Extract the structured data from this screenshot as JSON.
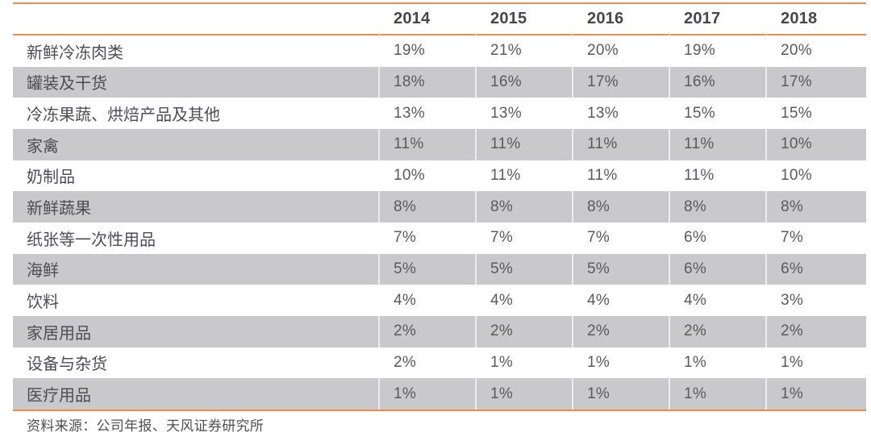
{
  "table": {
    "columns": [
      "2014",
      "2015",
      "2016",
      "2017",
      "2018"
    ],
    "rows": [
      {
        "label": "新鲜冷冻肉类",
        "values": [
          "19%",
          "21%",
          "20%",
          "19%",
          "20%"
        ]
      },
      {
        "label": "罐装及干货",
        "values": [
          "18%",
          "16%",
          "17%",
          "16%",
          "17%"
        ]
      },
      {
        "label": "冷冻果蔬、烘焙产品及其他",
        "values": [
          "13%",
          "13%",
          "13%",
          "15%",
          "15%"
        ]
      },
      {
        "label": "家禽",
        "values": [
          "11%",
          "11%",
          "11%",
          "11%",
          "10%"
        ]
      },
      {
        "label": "奶制品",
        "values": [
          "10%",
          "11%",
          "11%",
          "11%",
          "10%"
        ]
      },
      {
        "label": "新鲜蔬果",
        "values": [
          "8%",
          "8%",
          "8%",
          "8%",
          "8%"
        ]
      },
      {
        "label": "纸张等一次性用品",
        "values": [
          "7%",
          "7%",
          "7%",
          "6%",
          "7%"
        ]
      },
      {
        "label": "海鲜",
        "values": [
          "5%",
          "5%",
          "5%",
          "6%",
          "6%"
        ]
      },
      {
        "label": "饮料",
        "values": [
          "4%",
          "4%",
          "4%",
          "4%",
          "3%"
        ]
      },
      {
        "label": "家居用品",
        "values": [
          "2%",
          "2%",
          "2%",
          "2%",
          "2%"
        ]
      },
      {
        "label": "设备与杂货",
        "values": [
          "2%",
          "1%",
          "1%",
          "1%",
          "1%"
        ]
      },
      {
        "label": "医疗用品",
        "values": [
          "1%",
          "1%",
          "1%",
          "1%",
          "1%"
        ]
      }
    ]
  },
  "source": "资料来源：公司年报、天风证券研究所",
  "colors": {
    "accent_orange": "#ED8A47",
    "row_gray": "#c9c9cb",
    "header_text": "#47474b",
    "label_text": "#4d4d52",
    "value_text": "#5a5a5e"
  },
  "chart_data": {
    "type": "table",
    "title": "",
    "categories": [
      "2014",
      "2015",
      "2016",
      "2017",
      "2018"
    ],
    "unit": "%",
    "series": [
      {
        "name": "新鲜冷冻肉类",
        "values": [
          19,
          21,
          20,
          19,
          20
        ]
      },
      {
        "name": "罐装及干货",
        "values": [
          18,
          16,
          17,
          16,
          17
        ]
      },
      {
        "name": "冷冻果蔬、烘焙产品及其他",
        "values": [
          13,
          13,
          13,
          15,
          15
        ]
      },
      {
        "name": "家禽",
        "values": [
          11,
          11,
          11,
          11,
          10
        ]
      },
      {
        "name": "奶制品",
        "values": [
          10,
          11,
          11,
          11,
          10
        ]
      },
      {
        "name": "新鲜蔬果",
        "values": [
          8,
          8,
          8,
          8,
          8
        ]
      },
      {
        "name": "纸张等一次性用品",
        "values": [
          7,
          7,
          7,
          6,
          7
        ]
      },
      {
        "name": "海鲜",
        "values": [
          5,
          5,
          5,
          6,
          6
        ]
      },
      {
        "name": "饮料",
        "values": [
          4,
          4,
          4,
          4,
          3
        ]
      },
      {
        "name": "家居用品",
        "values": [
          2,
          2,
          2,
          2,
          2
        ]
      },
      {
        "name": "设备与杂货",
        "values": [
          2,
          1,
          1,
          1,
          1
        ]
      },
      {
        "name": "医疗用品",
        "values": [
          1,
          1,
          1,
          1,
          1
        ]
      }
    ],
    "source_note": "资料来源：公司年报、天风证券研究所"
  }
}
